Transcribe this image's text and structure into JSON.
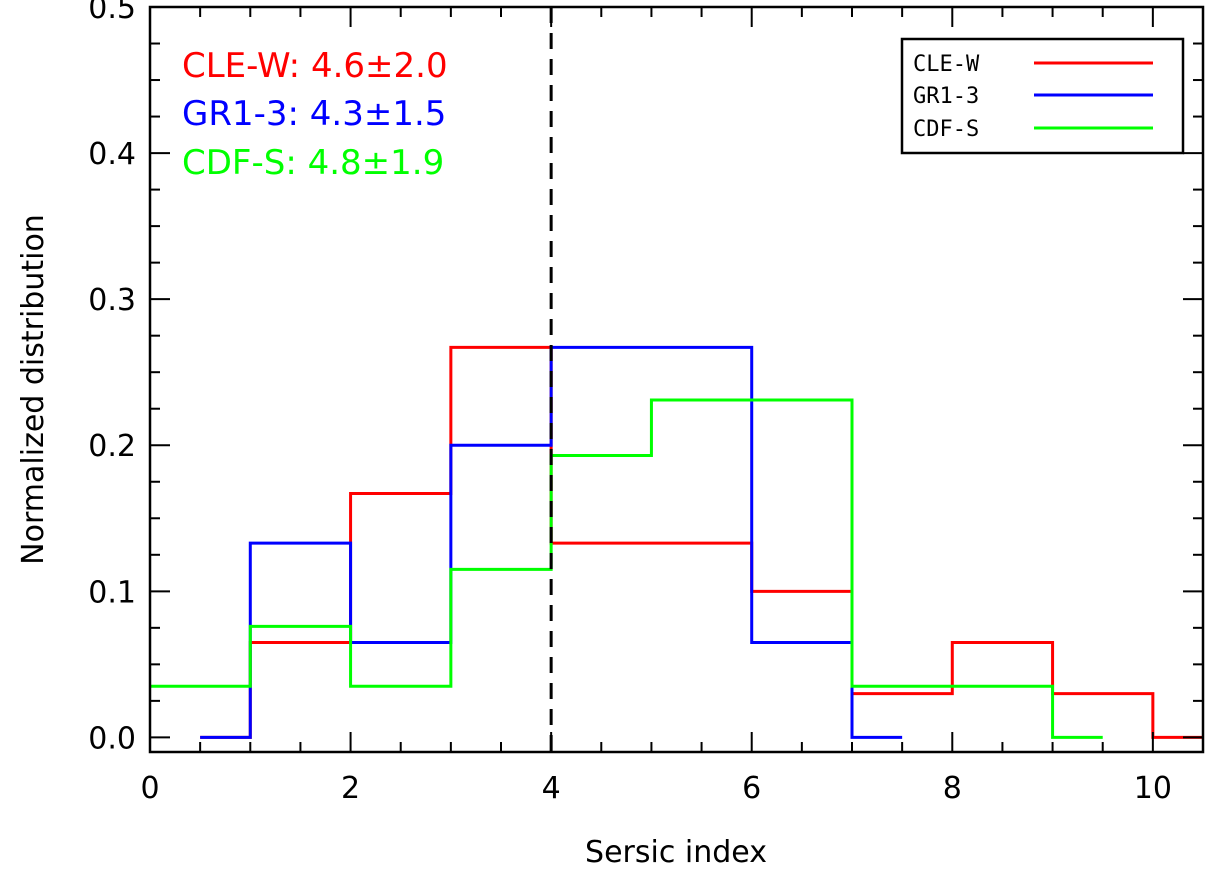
{
  "chart_data": {
    "type": "step-histogram",
    "xlabel": "Sersic index",
    "ylabel": "Normalized distribution",
    "xlim": [
      0,
      10.5
    ],
    "ylim": [
      -0.01,
      0.5
    ],
    "xticks": [
      0,
      2,
      4,
      6,
      8,
      10
    ],
    "xtick_labels": [
      "0",
      "2",
      "4",
      "6",
      "8",
      "10"
    ],
    "yticks": [
      0.0,
      0.1,
      0.2,
      0.3,
      0.4,
      0.5
    ],
    "ytick_labels": [
      "0.0",
      "0.1",
      "0.2",
      "0.3",
      "0.4",
      "0.5"
    ],
    "x_minor_step": 0.5,
    "y_minor_step": 0.025,
    "vline": {
      "x": 4,
      "style": "dashed",
      "color": "#000000"
    },
    "series": [
      {
        "name": "CLE-W",
        "color": "#ff0000",
        "stat": "CLE-W: 4.6±2.0",
        "edges": [
          0.5,
          1,
          2,
          3,
          4,
          5,
          6,
          7,
          8,
          9,
          10,
          10.5
        ],
        "values": [
          0.0,
          0.065,
          0.167,
          0.267,
          0.133,
          0.133,
          0.1,
          0.03,
          0.065,
          0.03,
          0.0
        ]
      },
      {
        "name": "GR1-3",
        "color": "#0000ff",
        "stat": "GR1-3: 4.3±1.5",
        "edges": [
          0.5,
          1,
          2,
          3,
          4,
          5,
          6,
          7,
          7.5
        ],
        "values": [
          0.0,
          0.133,
          0.065,
          0.2,
          0.267,
          0.267,
          0.065,
          0.0
        ]
      },
      {
        "name": "CDF-S",
        "color": "#00ff00",
        "stat": "CDF-S: 4.8±1.9",
        "edges": [
          0,
          1,
          2,
          3,
          4,
          5,
          6,
          7,
          8,
          9,
          9.5
        ],
        "values": [
          0.035,
          0.076,
          0.035,
          0.115,
          0.193,
          0.231,
          0.231,
          0.035,
          0.035,
          0.0
        ]
      }
    ],
    "legend": {
      "placement": "top-right"
    },
    "grid": false
  }
}
